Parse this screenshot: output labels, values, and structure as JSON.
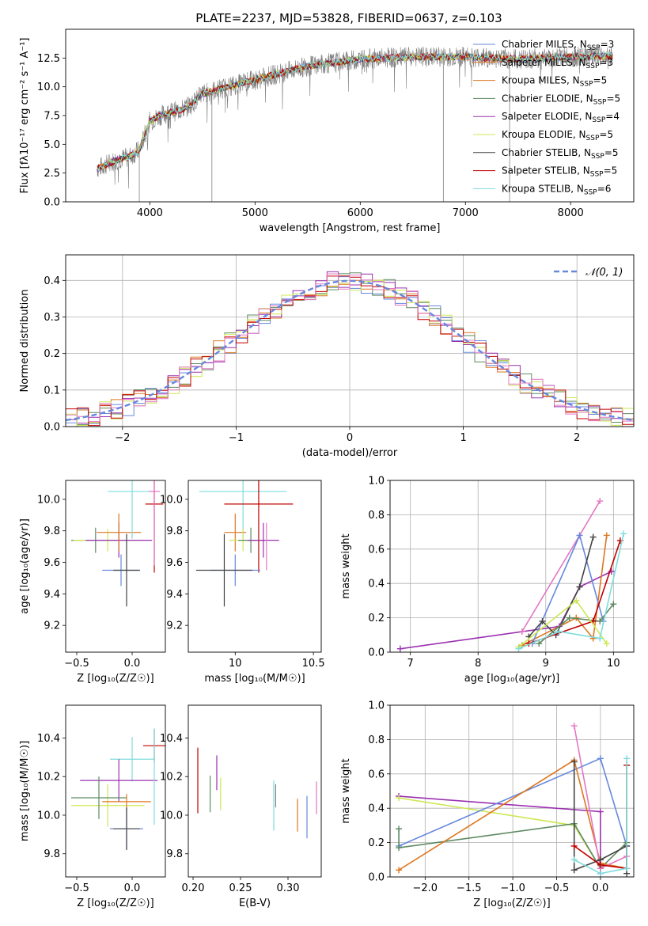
{
  "title": "PLATE=2237, MJD=53828, FIBERID=0637, z=0.103",
  "colors": {
    "blue": "#6688dd",
    "orange": "#dd7722",
    "green": "#5e8a62",
    "purple": "#9b30b0",
    "yellowgreen": "#cce855",
    "darkgray": "#444444",
    "red": "#c00000",
    "cyan": "#7fdcdc",
    "pink": "#e377c2",
    "gray": "#808080"
  },
  "chart_data": [
    {
      "id": "spectrum",
      "type": "line",
      "xlabel": "wavelength [Angstrom, rest frame]",
      "ylabel": "Flux [fλ10⁻¹⁷ erg cm⁻² s⁻¹ A⁻¹]",
      "xlim": [
        3200,
        8600
      ],
      "ylim": [
        0,
        15
      ],
      "xticks": [
        4000,
        5000,
        6000,
        7000,
        8000
      ],
      "yticks": [
        0.0,
        2.5,
        5.0,
        7.5,
        10.0,
        12.5
      ],
      "grid": false,
      "legend": "right",
      "continuum": {
        "x": [
          3500,
          3600,
          3700,
          3800,
          3900,
          4000,
          4100,
          4200,
          4300,
          4400,
          4500,
          4700,
          5000,
          5500,
          6000,
          6500,
          7000,
          7500,
          8000,
          8400
        ],
        "y": [
          2.9,
          3.3,
          3.7,
          3.9,
          4.5,
          7.0,
          7.5,
          7.8,
          8.0,
          8.5,
          9.4,
          9.9,
          10.6,
          11.8,
          12.4,
          12.6,
          12.6,
          12.4,
          12.6,
          12.7
        ]
      },
      "series": [
        {
          "name": "Chabrier MILES, N",
          "sub": "SSP",
          "suffix": "=3",
          "color": "blue"
        },
        {
          "name": "Salpeter MILES, N",
          "sub": "SSP",
          "suffix": "=3",
          "color": "orange"
        },
        {
          "name": "Kroupa MILES, N",
          "sub": "SSP",
          "suffix": "=5",
          "color": "orange"
        },
        {
          "name": "Chabrier ELODIE, N",
          "sub": "SSP",
          "suffix": "=5",
          "color": "green"
        },
        {
          "name": "Salpeter ELODIE, N",
          "sub": "SSP",
          "suffix": "=4",
          "color": "purple"
        },
        {
          "name": "Kroupa ELODIE, N",
          "sub": "SSP",
          "suffix": "=5",
          "color": "yellowgreen"
        },
        {
          "name": "Chabrier STELIB, N",
          "sub": "SSP",
          "suffix": "=5",
          "color": "darkgray"
        },
        {
          "name": "Salpeter STELIB, N",
          "sub": "SSP",
          "suffix": "=5",
          "color": "red"
        },
        {
          "name": "Kroupa STELIB, N",
          "sub": "SSP",
          "suffix": "=6",
          "color": "cyan"
        }
      ]
    },
    {
      "id": "residuals",
      "type": "line",
      "xlabel": "(data-model)/error",
      "ylabel": "Normed distribution",
      "xlim": [
        -2.5,
        2.5
      ],
      "ylim": [
        0,
        0.47
      ],
      "xticks": [
        -2,
        -1,
        0,
        1,
        2
      ],
      "xtick_labels": [
        "−2",
        "−1",
        "0",
        "1",
        "2"
      ],
      "yticks": [
        0.0,
        0.1,
        0.2,
        0.3,
        0.4
      ],
      "grid": true,
      "legend": "top-right",
      "legend_label": "𝒩(0, 1)",
      "series_colors": [
        "blue",
        "orange",
        "green",
        "purple",
        "yellowgreen",
        "red",
        "pink"
      ]
    },
    {
      "id": "age-vs-z",
      "type": "scatter",
      "xlabel": "Z [log₁₀(Z/Z☉)]",
      "ylabel": "age  [log₁₀(age/yr)]",
      "xlim": [
        -0.6,
        0.3
      ],
      "ylim": [
        9.03,
        10.12
      ],
      "xticks": [
        -0.5,
        0.0
      ],
      "xtick_labels": [
        "−0.5",
        "0.0"
      ],
      "yticks": [
        9.2,
        9.4,
        9.6,
        9.8,
        10.0
      ],
      "points": [
        {
          "x": -0.33,
          "y": 9.74,
          "xerr": 0.22,
          "yerr": 0.16,
          "color": "green"
        },
        {
          "x": -0.22,
          "y": 9.74,
          "xerr": 0.31,
          "yerr": 0.14,
          "color": "yellowgreen"
        },
        {
          "x": -0.12,
          "y": 9.74,
          "xerr": 0.3,
          "yerr": 0.22,
          "color": "purple"
        },
        {
          "x": -0.12,
          "y": 9.79,
          "xerr": 0.2,
          "yerr": 0.24,
          "color": "orange"
        },
        {
          "x": -0.1,
          "y": 9.55,
          "xerr": 0.17,
          "yerr": 0.2,
          "color": "blue"
        },
        {
          "x": -0.05,
          "y": 9.55,
          "xerr": 0.12,
          "yerr": 0.46,
          "color": "darkgray"
        },
        {
          "x": 0.0,
          "y": 10.05,
          "xerr": 0.22,
          "yerr": 0.6,
          "color": "cyan"
        },
        {
          "x": 0.2,
          "y": 9.97,
          "xerr": 0.08,
          "yerr": 0.87,
          "color": "red"
        },
        {
          "x": 0.2,
          "y": 10.05,
          "xerr": 0.05,
          "yerr": 0.94,
          "color": "pink"
        }
      ]
    },
    {
      "id": "age-vs-mass",
      "type": "scatter",
      "xlabel": "mass [log₁₀(M/M☉)]",
      "ylabel": "",
      "xlim": [
        9.7,
        10.55
      ],
      "ylim": [
        9.03,
        10.12
      ],
      "xticks": [
        10.0,
        10.5
      ],
      "yticks": [
        9.2,
        9.4,
        9.6,
        9.8,
        10.0
      ],
      "points": [
        {
          "x": 10.05,
          "y": 10.05,
          "xerr": 0.28,
          "yerr": 0.6,
          "color": "cyan"
        },
        {
          "x": 10.15,
          "y": 9.97,
          "xerr": 0.22,
          "yerr": 0.87,
          "color": "red"
        },
        {
          "x": 10.0,
          "y": 9.79,
          "xerr": 0.07,
          "yerr": 0.24,
          "color": "orange"
        },
        {
          "x": 10.05,
          "y": 9.74,
          "xerr": 0.09,
          "yerr": 0.14,
          "color": "yellowgreen"
        },
        {
          "x": 10.1,
          "y": 9.74,
          "xerr": 0.08,
          "yerr": 0.16,
          "color": "green"
        },
        {
          "x": 10.18,
          "y": 9.74,
          "xerr": 0.1,
          "yerr": 0.22,
          "color": "purple"
        },
        {
          "x": 10.0,
          "y": 9.55,
          "xerr": 0.16,
          "yerr": 0.2,
          "color": "blue"
        },
        {
          "x": 9.93,
          "y": 9.55,
          "xerr": 0.18,
          "yerr": 0.46,
          "color": "darkgray"
        },
        {
          "x": 10.2,
          "y": 9.7,
          "xerr": 0.0,
          "yerr": 0.3,
          "color": "pink"
        }
      ]
    },
    {
      "id": "weight-vs-age",
      "type": "line",
      "xlabel": "age  [log₁₀(age/yr)]",
      "ylabel": "mass weight",
      "xlim": [
        6.7,
        10.3
      ],
      "ylim": [
        0,
        1
      ],
      "xticks": [
        7,
        8,
        9,
        10
      ],
      "yticks": [
        0.0,
        0.2,
        0.4,
        0.6,
        0.8,
        1.0
      ],
      "grid": true,
      "series": [
        {
          "color": "purple",
          "x": [
            6.85,
            9.2,
            9.5,
            9.97
          ],
          "y": [
            0.02,
            0.15,
            0.38,
            0.47
          ]
        },
        {
          "color": "orange",
          "x": [
            8.65,
            9.45,
            9.7,
            9.9
          ],
          "y": [
            0.04,
            0.2,
            0.08,
            0.68
          ]
        },
        {
          "color": "pink",
          "x": [
            8.65,
            9.5,
            9.8
          ],
          "y": [
            0.12,
            0.68,
            0.88
          ]
        },
        {
          "color": "blue",
          "x": [
            8.8,
            9.5,
            9.85
          ],
          "y": [
            0.05,
            0.68,
            0.18
          ]
        },
        {
          "color": "darkgray",
          "x": [
            8.75,
            8.95,
            9.15,
            9.5,
            9.7
          ],
          "y": [
            0.09,
            0.18,
            0.1,
            0.38,
            0.67
          ]
        },
        {
          "color": "green",
          "x": [
            8.9,
            9.35,
            9.8,
            10.0
          ],
          "y": [
            0.05,
            0.2,
            0.18,
            0.28
          ]
        },
        {
          "color": "red",
          "x": [
            8.75,
            9.7,
            10.1
          ],
          "y": [
            0.05,
            0.18,
            0.65
          ]
        },
        {
          "color": "yellowgreen",
          "x": [
            8.6,
            9.45,
            9.9
          ],
          "y": [
            0.03,
            0.3,
            0.05
          ]
        },
        {
          "color": "cyan",
          "x": [
            8.6,
            9.2,
            9.8,
            10.15
          ],
          "y": [
            0.02,
            0.12,
            0.08,
            0.69
          ]
        }
      ]
    },
    {
      "id": "mass-vs-z",
      "type": "scatter",
      "xlabel": "Z [log₁₀(Z/Z☉)]",
      "ylabel": "mass [log₁₀(M/M☉)]",
      "xlim": [
        -0.6,
        0.3
      ],
      "ylim": [
        9.68,
        10.57
      ],
      "xticks": [
        -0.5,
        0.0
      ],
      "xtick_labels": [
        "−0.5",
        "0.0"
      ],
      "yticks": [
        9.8,
        10.0,
        10.2,
        10.4
      ],
      "points": [
        {
          "x": 0.2,
          "y": 10.36,
          "xerr": 0.1,
          "yerr": 0.17,
          "color": "red"
        },
        {
          "x": 0.0,
          "y": 10.29,
          "xerr": 0.2,
          "yerr": 0.23,
          "color": "cyan"
        },
        {
          "x": -0.12,
          "y": 10.18,
          "xerr": 0.35,
          "yerr": 0.22,
          "color": "purple"
        },
        {
          "x": -0.22,
          "y": 10.05,
          "xerr": 0.33,
          "yerr": 0.22,
          "color": "yellowgreen"
        },
        {
          "x": -0.3,
          "y": 10.09,
          "xerr": 0.25,
          "yerr": 0.22,
          "color": "green"
        },
        {
          "x": -0.05,
          "y": 10.07,
          "xerr": 0.22,
          "yerr": 0.08,
          "color": "orange"
        },
        {
          "x": -0.05,
          "y": 9.93,
          "xerr": 0.15,
          "yerr": 0.22,
          "color": "blue"
        },
        {
          "x": -0.05,
          "y": 9.93,
          "xerr": 0.12,
          "yerr": 0.22,
          "color": "darkgray"
        },
        {
          "x": 0.2,
          "y": 10.2,
          "xerr": 0.0,
          "yerr": 0.5,
          "color": "cyan"
        }
      ]
    },
    {
      "id": "mass-vs-ebv",
      "type": "scatter",
      "xlabel": "E(B-V)",
      "ylabel": "",
      "xlim": [
        0.195,
        0.335
      ],
      "ylim": [
        9.68,
        10.57
      ],
      "xticks": [
        0.2,
        0.25,
        0.3
      ],
      "xtick_labels": [
        "0.20",
        "0.25",
        "0.30"
      ],
      "yticks": [
        9.8,
        10.0,
        10.2,
        10.4
      ],
      "points": [
        {
          "x": 0.205,
          "y": 10.18,
          "yerr": 0.34,
          "color": "red"
        },
        {
          "x": 0.218,
          "y": 10.11,
          "yerr": 0.19,
          "color": "green"
        },
        {
          "x": 0.225,
          "y": 10.22,
          "yerr": 0.18,
          "color": "purple"
        },
        {
          "x": 0.229,
          "y": 10.11,
          "yerr": 0.17,
          "color": "yellowgreen"
        },
        {
          "x": 0.285,
          "y": 10.05,
          "yerr": 0.26,
          "color": "cyan"
        },
        {
          "x": 0.287,
          "y": 10.1,
          "yerr": 0.12,
          "color": "gray"
        },
        {
          "x": 0.31,
          "y": 10.0,
          "yerr": 0.17,
          "color": "orange"
        },
        {
          "x": 0.32,
          "y": 9.99,
          "yerr": 0.22,
          "color": "blue"
        },
        {
          "x": 0.33,
          "y": 10.09,
          "yerr": 0.17,
          "color": "pink"
        }
      ]
    },
    {
      "id": "weight-vs-z",
      "type": "line",
      "xlabel": "Z [log₁₀(Z/Z☉)]",
      "ylabel": "mass weight",
      "xlim": [
        -2.4,
        0.38
      ],
      "ylim": [
        0,
        1
      ],
      "xticks": [
        -2.0,
        -1.5,
        -1.0,
        -0.5,
        0.0
      ],
      "xtick_labels": [
        "−2.0",
        "−1.5",
        "−1.0",
        "−0.5",
        "0.0"
      ],
      "yticks": [
        0.0,
        0.2,
        0.4,
        0.6,
        0.8,
        1.0
      ],
      "grid": true,
      "series": [
        {
          "color": "purple",
          "x": [
            -2.3,
            0.0,
            0.0
          ],
          "y": [
            0.47,
            0.38,
            0.02
          ]
        },
        {
          "color": "yellowgreen",
          "x": [
            -2.3,
            -0.3,
            0.0
          ],
          "y": [
            0.46,
            0.3,
            0.05
          ]
        },
        {
          "color": "blue",
          "x": [
            -2.3,
            0.0,
            0.3,
            0.3
          ],
          "y": [
            0.18,
            0.69,
            0.18,
            0.05
          ]
        },
        {
          "color": "green",
          "x": [
            -2.3,
            -2.3,
            -0.3,
            0.0,
            0.3
          ],
          "y": [
            0.28,
            0.17,
            0.31,
            0.05,
            0.2
          ]
        },
        {
          "color": "orange",
          "x": [
            -2.3,
            -0.3,
            0.0,
            0.3
          ],
          "y": [
            0.04,
            0.68,
            0.08,
            0.05
          ]
        },
        {
          "color": "pink",
          "x": [
            -0.3,
            0.0,
            0.3
          ],
          "y": [
            0.88,
            0.05,
            0.12
          ]
        },
        {
          "color": "darkgray",
          "x": [
            -0.3,
            -0.3,
            0.0,
            0.3,
            0.3
          ],
          "y": [
            0.67,
            0.04,
            0.1,
            0.18,
            0.02
          ]
        },
        {
          "color": "red",
          "x": [
            -0.3,
            0.0,
            0.3,
            0.3
          ],
          "y": [
            0.18,
            0.07,
            0.05,
            0.65
          ]
        },
        {
          "color": "cyan",
          "x": [
            -0.3,
            0.0,
            0.3,
            0.3
          ],
          "y": [
            0.1,
            0.02,
            0.05,
            0.69
          ]
        }
      ]
    }
  ]
}
